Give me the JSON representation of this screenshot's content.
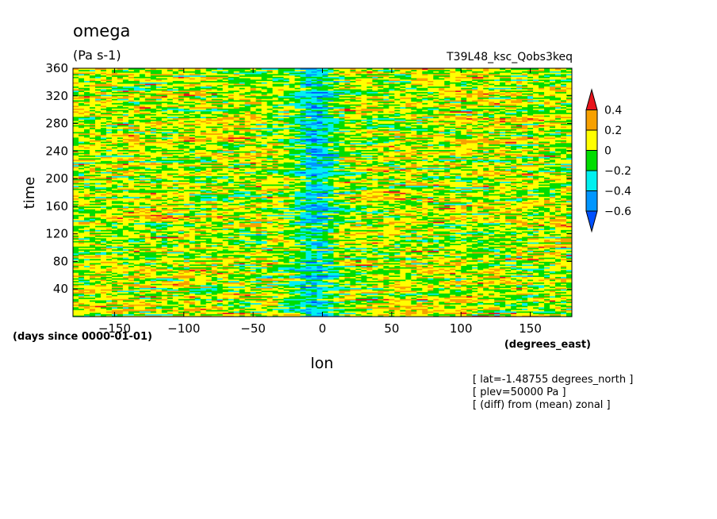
{
  "chart_data": {
    "type": "heatmap",
    "title": "omega",
    "units": "(Pa s-1)",
    "experiment": "T39L48_ksc_Qobs3keq",
    "xlabel": "lon",
    "ylabel": "time",
    "x_units": "(degrees_east)",
    "y_units": "(days since 0000-01-01)",
    "xlim": [
      -180,
      180
    ],
    "ylim": [
      0,
      360
    ],
    "x_ticks": [
      -150,
      -100,
      -50,
      0,
      50,
      100,
      150
    ],
    "y_ticks": [
      40,
      80,
      120,
      160,
      200,
      240,
      280,
      320,
      360
    ],
    "notes": [
      "[ lat=-1.48755 degrees_north ]",
      "[ plev=50000 Pa ]",
      "[ (diff) from (mean) zonal ]"
    ],
    "colorbar": {
      "labels": [
        "0.4",
        "0.2",
        "0",
        "-0.2",
        "-0.4",
        "-0.6"
      ],
      "levels": [
        0.4,
        0.2,
        0,
        -0.2,
        -0.4,
        -0.6
      ],
      "colors": [
        "#e8141c",
        "#f7a000",
        "#ffff00",
        "#00dd00",
        "#00f0f0",
        "#0096ff",
        "#0050ff"
      ]
    },
    "field_description": {
      "background_range": [
        -0.2,
        0.3
      ],
      "negative_band_center_lon": -5,
      "negative_band_half_width": 15,
      "negative_band_min": -0.6
    }
  }
}
